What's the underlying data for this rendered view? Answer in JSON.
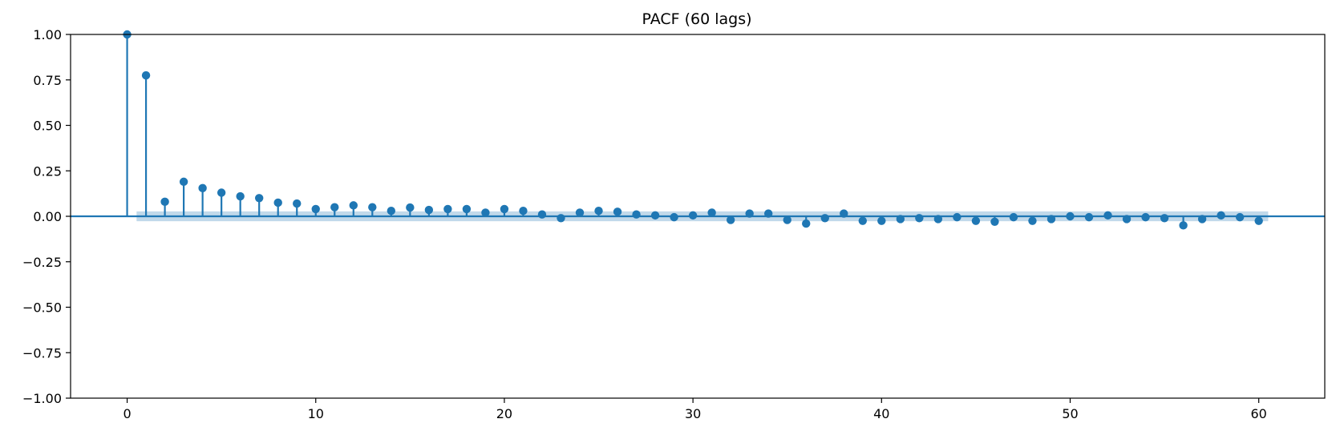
{
  "chart_data": {
    "type": "stem",
    "title": "PACF (60 lags)",
    "xlabel": "",
    "ylabel": "",
    "xlim": [
      -3,
      63.5
    ],
    "ylim": [
      -1.0,
      1.0
    ],
    "x_ticks": [
      0,
      10,
      20,
      30,
      40,
      50,
      60
    ],
    "y_ticks": [
      1.0,
      0.75,
      0.5,
      0.25,
      0.0,
      -0.25,
      -0.5,
      -0.75,
      -1.0
    ],
    "y_tick_labels": [
      "1.00",
      "0.75",
      "0.50",
      "0.25",
      "0.00",
      "−0.25",
      "−0.50",
      "−0.75",
      "−1.00"
    ],
    "x_tick_labels": [
      "0",
      "10",
      "20",
      "30",
      "40",
      "50",
      "60"
    ],
    "grid": false,
    "confidence_band": [
      -0.027,
      0.027
    ],
    "confidence_band_x": [
      0.5,
      60.5
    ],
    "colors": {
      "stem": "#1f77b4",
      "band": "#1f77b4"
    },
    "lags": [
      0,
      1,
      2,
      3,
      4,
      5,
      6,
      7,
      8,
      9,
      10,
      11,
      12,
      13,
      14,
      15,
      16,
      17,
      18,
      19,
      20,
      21,
      22,
      23,
      24,
      25,
      26,
      27,
      28,
      29,
      30,
      31,
      32,
      33,
      34,
      35,
      36,
      37,
      38,
      39,
      40,
      41,
      42,
      43,
      44,
      45,
      46,
      47,
      48,
      49,
      50,
      51,
      52,
      53,
      54,
      55,
      56,
      57,
      58,
      59,
      60
    ],
    "values": [
      1.0,
      0.775,
      0.08,
      0.19,
      0.155,
      0.13,
      0.11,
      0.1,
      0.075,
      0.07,
      0.04,
      0.05,
      0.06,
      0.05,
      0.03,
      0.048,
      0.035,
      0.04,
      0.04,
      0.02,
      0.04,
      0.03,
      0.01,
      -0.01,
      0.02,
      0.03,
      0.025,
      0.01,
      0.005,
      -0.005,
      0.005,
      0.02,
      -0.02,
      0.015,
      0.015,
      -0.02,
      -0.04,
      -0.01,
      0.015,
      -0.025,
      -0.025,
      -0.015,
      -0.01,
      -0.015,
      -0.005,
      -0.025,
      -0.03,
      -0.005,
      -0.025,
      -0.015,
      0.0,
      -0.005,
      0.005,
      -0.015,
      -0.005,
      -0.01,
      -0.05,
      -0.015,
      0.005,
      -0.005,
      -0.025
    ]
  }
}
